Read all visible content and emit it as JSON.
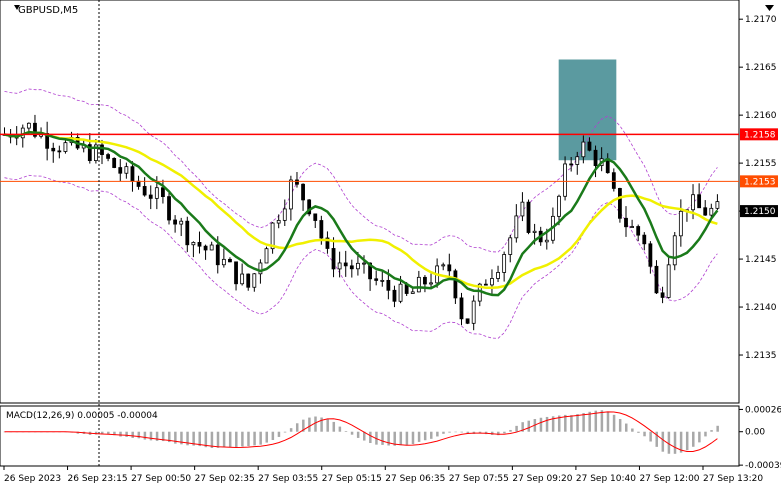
{
  "chart_data": [
    {
      "type": "candlestick",
      "title": "GBPUSD,M5",
      "price_axis": {
        "ylim": [
          2130,
          2172
        ],
        "ticks": [
          "1.2170",
          "1.2165",
          "1.2160",
          "1.2155",
          "1.2150",
          "1.2145",
          "1.2140",
          "1.2135"
        ],
        "tick_values": [
          2170,
          2165,
          2160,
          2155,
          2150,
          2145,
          2140,
          2135
        ]
      },
      "time_axis": {
        "labels": [
          "26 Sep 2023",
          "26 Sep 23:15",
          "27 Sep 00:50",
          "27 Sep 02:35",
          "27 Sep 03:55",
          "27 Sep 05:15",
          "27 Sep 06:35",
          "27 Sep 07:55",
          "27 Sep 09:20",
          "27 Sep 10:40",
          "27 Sep 12:00",
          "27 Sep 13:20"
        ]
      },
      "horizontal_lines": [
        {
          "label": "1.2158",
          "value": 2158,
          "color": "#ff0000"
        },
        {
          "label": "1.2153",
          "value": 2153.1,
          "color": "#ff4d00"
        }
      ],
      "current_price": {
        "label": "1.2150",
        "value": 2150
      },
      "highlight_zone": {
        "x_from": 0.756,
        "x_to": 0.834,
        "y_from": 2155.3,
        "y_to": 2165.8,
        "color": "#5b9aa0"
      },
      "candle_colors": {
        "up": "#ffffff",
        "down": "#000000"
      },
      "ma_colors": {
        "fast": "#1a7a1a",
        "slow": "#f0f000",
        "bands": "#b040d0"
      }
    },
    {
      "type": "bar",
      "title": "MACD(12,26,9) 0.00005 -0.00004",
      "ylim": [
        -0.0004,
        0.0003
      ],
      "ticks": [
        "0.00026",
        "0.00",
        "-0.00039"
      ],
      "tick_values": [
        0.00026,
        0.0,
        -0.00039
      ],
      "histogram_color": "#a8a8a8",
      "signal_color": "#ff0000"
    }
  ]
}
